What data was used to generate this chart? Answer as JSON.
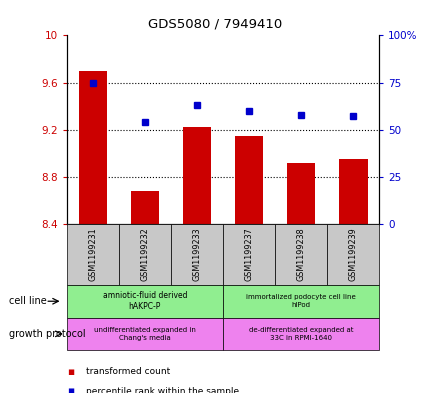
{
  "title": "GDS5080 / 7949410",
  "samples": [
    "GSM1199231",
    "GSM1199232",
    "GSM1199233",
    "GSM1199237",
    "GSM1199238",
    "GSM1199239"
  ],
  "red_values": [
    9.7,
    8.68,
    9.22,
    9.15,
    8.92,
    8.95
  ],
  "blue_values": [
    75.0,
    54.0,
    63.0,
    60.0,
    58.0,
    57.0
  ],
  "ylim_left": [
    8.4,
    10.0
  ],
  "ylim_right": [
    0,
    100
  ],
  "yticks_left": [
    8.4,
    8.8,
    9.2,
    9.6,
    10.0
  ],
  "yticks_right": [
    0,
    25,
    50,
    75,
    100
  ],
  "ytick_labels_left": [
    "8.4",
    "8.8",
    "9.2",
    "9.6",
    "10"
  ],
  "ytick_labels_right": [
    "0",
    "25",
    "50",
    "75",
    "100%"
  ],
  "hline_values": [
    8.8,
    9.2,
    9.6
  ],
  "cell_line_labels": [
    "amniotic-fluid derived\nhAKPC-P",
    "immortalized podocyte cell line\nhIPod"
  ],
  "growth_protocol_labels": [
    "undifferentiated expanded in\nChang's media",
    "de-differentiated expanded at\n33C in RPMI-1640"
  ],
  "bar_color": "#CC0000",
  "dot_color": "#0000CC",
  "bar_width": 0.55,
  "legend_red": "transformed count",
  "legend_blue": "percentile rank within the sample",
  "cell_line_color": "#90EE90",
  "growth_protocol_color": "#EE82EE",
  "sample_box_color": "#C8C8C8"
}
